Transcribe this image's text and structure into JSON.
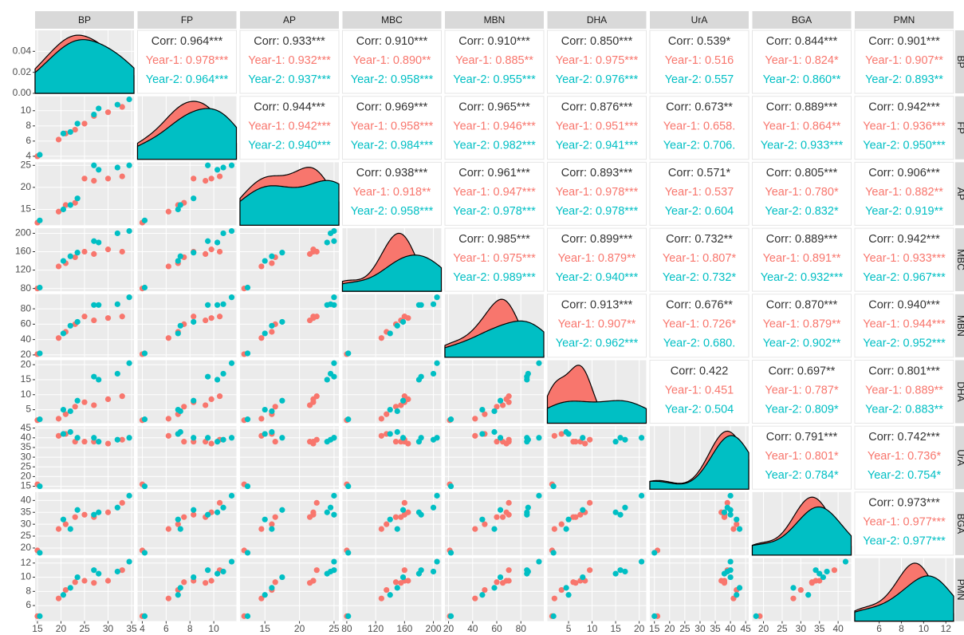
{
  "chart_data": {
    "type": "pairs",
    "variables": [
      "BP",
      "FP",
      "AP",
      "MBC",
      "MBN",
      "DHA",
      "UrA",
      "BGA",
      "PMN"
    ],
    "axes": [
      {
        "lim": [
          14.5,
          35.5
        ],
        "ticks": [
          15,
          20,
          25,
          30,
          35
        ]
      },
      {
        "lim": [
          3.6,
          11.9
        ],
        "ticks": [
          4,
          6,
          8,
          10
        ]
      },
      {
        "lim": [
          11.4,
          25.7
        ],
        "ticks": [
          15,
          20,
          25
        ]
      },
      {
        "lim": [
          74,
          211
        ],
        "ticks": [
          80,
          120,
          160,
          200
        ]
      },
      {
        "lim": [
          17,
          99
        ],
        "ticks": [
          20,
          40,
          60,
          80
        ]
      },
      {
        "lim": [
          0.5,
          21.5
        ],
        "ticks": [
          5,
          10,
          15,
          20
        ]
      },
      {
        "lim": [
          13.5,
          46
        ],
        "ticks": [
          15,
          20,
          25,
          30,
          35,
          40,
          45
        ]
      },
      {
        "lim": [
          17,
          43.5
        ],
        "ticks": [
          20,
          25,
          30,
          35,
          40
        ]
      },
      {
        "lim": [
          3.8,
          12.7
        ],
        "ticks": [
          6,
          8,
          10,
          12
        ]
      }
    ],
    "density_axis": {
      "lim": [
        0,
        0.06
      ],
      "ticks": [
        {
          "value": 0,
          "label": "0.00"
        },
        {
          "value": 0.02,
          "label": "0.02"
        },
        {
          "value": 0.04,
          "label": "0.04"
        }
      ]
    },
    "groups": [
      {
        "color": "#F8766D",
        "values": [
          [
            15,
            4,
            12,
            80,
            21,
            1.5,
            16,
            19,
            4.5
          ],
          [
            19.5,
            6.2,
            14.5,
            128,
            42,
            2,
            41,
            28,
            7
          ],
          [
            21,
            7,
            16,
            135,
            50,
            3.5,
            42,
            30,
            8.2
          ],
          [
            23,
            7.5,
            16.5,
            148,
            60,
            6,
            38,
            33,
            9.3
          ],
          [
            25,
            8.3,
            22,
            160,
            70,
            7.5,
            38,
            34,
            9.5
          ],
          [
            27,
            9.3,
            21.5,
            155,
            65,
            6.5,
            38,
            33,
            9.2
          ],
          [
            30,
            9.8,
            22,
            165,
            68,
            8.5,
            37,
            35,
            9.5
          ],
          [
            33,
            10.5,
            22.5,
            160,
            70,
            9.5,
            39,
            39,
            11
          ]
        ]
      },
      {
        "color": "#00BFC4",
        "values": [
          [
            15.5,
            4.2,
            12.5,
            82,
            22,
            1.8,
            15,
            18,
            4.5
          ],
          [
            20.5,
            7,
            15,
            140,
            48,
            5,
            42,
            32,
            7.5
          ],
          [
            22,
            7.2,
            16,
            150,
            58,
            4.5,
            43,
            28,
            8.5
          ],
          [
            23.5,
            8.3,
            17.5,
            158,
            63,
            8,
            40,
            36,
            10
          ],
          [
            27,
            9.5,
            25,
            183,
            85,
            16,
            40,
            34,
            11
          ],
          [
            28,
            10.3,
            24,
            180,
            85,
            15,
            38,
            35,
            10.5
          ],
          [
            32,
            10.8,
            24.5,
            200,
            86,
            17,
            39,
            37,
            10.8
          ],
          [
            34.5,
            11.5,
            25,
            205,
            95,
            20.5,
            40,
            42,
            12.2
          ]
        ]
      }
    ],
    "correlations": [
      [
        [
          "Corr: 0.964***",
          "Year-1: 0.978***",
          "Year-2: 0.964***"
        ],
        [
          "Corr: 0.933***",
          "Year-1: 0.932***",
          "Year-2: 0.937***"
        ],
        [
          "Corr: 0.910***",
          "Year-1: 0.890**",
          "Year-2: 0.958***"
        ],
        [
          "Corr: 0.910***",
          "Year-1: 0.885**",
          "Year-2: 0.955***"
        ],
        [
          "Corr: 0.850***",
          "Year-1: 0.975***",
          "Year-2: 0.976***"
        ],
        [
          "Corr: 0.539*",
          "Year-1: 0.516",
          "Year-2: 0.557"
        ],
        [
          "Corr: 0.844***",
          "Year-1: 0.824*",
          "Year-2: 0.860**"
        ],
        [
          "Corr: 0.901***",
          "Year-1: 0.907**",
          "Year-2: 0.893**"
        ]
      ],
      [
        [
          "Corr: 0.944***",
          "Year-1: 0.942***",
          "Year-2: 0.940***"
        ],
        [
          "Corr: 0.969***",
          "Year-1: 0.958***",
          "Year-2: 0.984***"
        ],
        [
          "Corr: 0.965***",
          "Year-1: 0.946***",
          "Year-2: 0.982***"
        ],
        [
          "Corr: 0.876***",
          "Year-1: 0.951***",
          "Year-2: 0.941***"
        ],
        [
          "Corr: 0.673**",
          "Year-1: 0.658.",
          "Year-2: 0.706."
        ],
        [
          "Corr: 0.889***",
          "Year-1: 0.864**",
          "Year-2: 0.933***"
        ],
        [
          "Corr: 0.942***",
          "Year-1: 0.936***",
          "Year-2: 0.950***"
        ]
      ],
      [
        [
          "Corr: 0.938***",
          "Year-1: 0.918**",
          "Year-2: 0.958***"
        ],
        [
          "Corr: 0.961***",
          "Year-1: 0.947***",
          "Year-2: 0.978***"
        ],
        [
          "Corr: 0.893***",
          "Year-1: 0.978***",
          "Year-2: 0.978***"
        ],
        [
          "Corr: 0.571*",
          "Year-1: 0.537",
          "Year-2: 0.604"
        ],
        [
          "Corr: 0.805***",
          "Year-1: 0.780*",
          "Year-2: 0.832*"
        ],
        [
          "Corr: 0.906***",
          "Year-1: 0.882**",
          "Year-2: 0.919**"
        ]
      ],
      [
        [
          "Corr: 0.985***",
          "Year-1: 0.975***",
          "Year-2: 0.989***"
        ],
        [
          "Corr: 0.899***",
          "Year-1: 0.879**",
          "Year-2: 0.940***"
        ],
        [
          "Corr: 0.732**",
          "Year-1: 0.807*",
          "Year-2: 0.732*"
        ],
        [
          "Corr: 0.889***",
          "Year-1: 0.891**",
          "Year-2: 0.932***"
        ],
        [
          "Corr: 0.942***",
          "Year-1: 0.933***",
          "Year-2: 0.967***"
        ]
      ],
      [
        [
          "Corr: 0.913***",
          "Year-1: 0.907**",
          "Year-2: 0.962***"
        ],
        [
          "Corr: 0.676**",
          "Year-1: 0.726*",
          "Year-2: 0.680."
        ],
        [
          "Corr: 0.870***",
          "Year-1: 0.879**",
          "Year-2: 0.902**"
        ],
        [
          "Corr: 0.940***",
          "Year-1: 0.944***",
          "Year-2: 0.952***"
        ]
      ],
      [
        [
          "Corr: 0.422",
          "Year-1: 0.451",
          "Year-2: 0.504"
        ],
        [
          "Corr: 0.697**",
          "Year-1: 0.787*",
          "Year-2: 0.809*"
        ],
        [
          "Corr: 0.801***",
          "Year-1: 0.889**",
          "Year-2: 0.883**"
        ]
      ],
      [
        [
          "Corr: 0.791***",
          "Year-1: 0.801*",
          "Year-2: 0.784*"
        ],
        [
          "Corr: 0.742***",
          "Year-1: 0.736*",
          "Year-2: 0.754*"
        ]
      ],
      [
        [
          "Corr: 0.973***",
          "Year-1: 0.977***",
          "Year-2: 0.977***"
        ]
      ],
      []
    ]
  }
}
